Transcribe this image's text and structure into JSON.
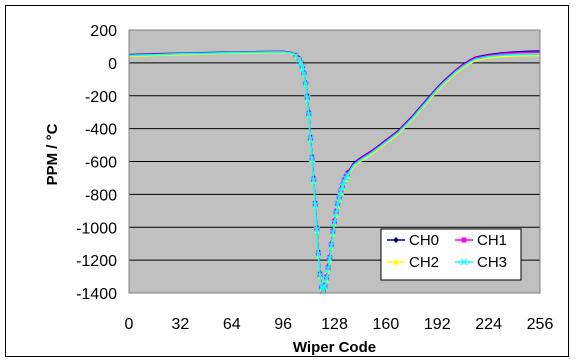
{
  "chart_data": {
    "type": "line",
    "title": "",
    "xlabel": "Wiper Code",
    "ylabel": "PPM / °C",
    "xlim": [
      0,
      256
    ],
    "ylim": [
      -1400,
      200
    ],
    "xticks": [
      0,
      32,
      64,
      96,
      128,
      160,
      192,
      224,
      256
    ],
    "yticks": [
      200,
      0,
      -200,
      -400,
      -600,
      -800,
      -1000,
      -1200,
      -1400
    ],
    "grid": "horizontal",
    "plot_background": "#c0c0c0",
    "legend_placement": "bottom-right",
    "series": [
      {
        "name": "CH0",
        "color": "#000080",
        "marker": "diamond",
        "x": [
          0,
          16,
          32,
          48,
          64,
          80,
          96,
          100,
          102,
          104,
          106,
          107,
          108,
          109,
          110,
          111,
          112,
          113,
          114,
          115,
          116,
          117,
          118,
          119,
          120,
          121,
          122,
          123,
          124,
          125,
          126,
          127,
          128,
          129,
          130,
          131,
          132,
          133,
          134,
          135,
          136,
          138,
          140,
          144,
          148,
          152,
          156,
          160,
          164,
          168,
          172,
          176,
          180,
          184,
          188,
          192,
          196,
          200,
          204,
          208,
          212,
          216,
          224,
          232,
          240,
          248,
          256
        ],
        "y": [
          50,
          55,
          58,
          62,
          65,
          68,
          70,
          65,
          60,
          45,
          25,
          5,
          -20,
          -60,
          -120,
          -200,
          -300,
          -450,
          -570,
          -700,
          -850,
          -1000,
          -1150,
          -1280,
          -1360,
          -1380,
          -1350,
          -1300,
          -1240,
          -1180,
          -1100,
          -1020,
          -960,
          -900,
          -850,
          -810,
          -770,
          -740,
          -710,
          -690,
          -670,
          -640,
          -610,
          -580,
          -555,
          -530,
          -500,
          -470,
          -440,
          -410,
          -370,
          -330,
          -285,
          -240,
          -195,
          -150,
          -110,
          -75,
          -40,
          -10,
          15,
          35,
          50,
          60,
          66,
          70,
          72
        ]
      },
      {
        "name": "CH1",
        "color": "#ff00ff",
        "marker": "square",
        "x": [
          0,
          16,
          32,
          48,
          64,
          80,
          96,
          100,
          102,
          104,
          106,
          107,
          108,
          109,
          110,
          111,
          112,
          113,
          114,
          115,
          116,
          117,
          118,
          119,
          120,
          121,
          122,
          123,
          124,
          125,
          126,
          127,
          128,
          129,
          130,
          131,
          132,
          133,
          134,
          135,
          136,
          138,
          140,
          144,
          148,
          152,
          156,
          160,
          164,
          168,
          172,
          176,
          180,
          184,
          188,
          192,
          196,
          200,
          204,
          208,
          212,
          216,
          224,
          232,
          240,
          248,
          256
        ],
        "y": [
          48,
          52,
          56,
          60,
          63,
          66,
          68,
          64,
          58,
          42,
          22,
          0,
          -25,
          -65,
          -125,
          -210,
          -310,
          -460,
          -580,
          -710,
          -860,
          -1010,
          -1160,
          -1290,
          -1365,
          -1385,
          -1355,
          -1305,
          -1245,
          -1185,
          -1105,
          -1025,
          -965,
          -905,
          -855,
          -815,
          -775,
          -745,
          -715,
          -695,
          -675,
          -645,
          -615,
          -585,
          -560,
          -535,
          -505,
          -475,
          -445,
          -415,
          -375,
          -335,
          -290,
          -245,
          -200,
          -155,
          -115,
          -80,
          -45,
          -15,
          10,
          30,
          45,
          55,
          60,
          63,
          65
        ]
      },
      {
        "name": "CH2",
        "color": "#ffff00",
        "marker": "triangle",
        "x": [
          0,
          16,
          32,
          48,
          64,
          80,
          96,
          100,
          102,
          104,
          106,
          107,
          108,
          109,
          110,
          111,
          112,
          113,
          114,
          115,
          116,
          117,
          118,
          119,
          120,
          121,
          122,
          123,
          124,
          125,
          126,
          127,
          128,
          129,
          130,
          131,
          132,
          133,
          134,
          135,
          136,
          138,
          140,
          144,
          148,
          152,
          156,
          160,
          164,
          168,
          172,
          176,
          180,
          184,
          188,
          192,
          196,
          200,
          204,
          208,
          212,
          216,
          224,
          232,
          240,
          248,
          256
        ],
        "y": [
          40,
          45,
          50,
          55,
          58,
          62,
          64,
          60,
          55,
          40,
          20,
          0,
          -30,
          -70,
          -130,
          -220,
          -320,
          -470,
          -590,
          -720,
          -870,
          -1020,
          -1170,
          -1300,
          -1370,
          -1390,
          -1365,
          -1320,
          -1260,
          -1200,
          -1120,
          -1040,
          -980,
          -920,
          -870,
          -830,
          -790,
          -760,
          -730,
          -710,
          -690,
          -660,
          -630,
          -600,
          -575,
          -550,
          -520,
          -490,
          -460,
          -430,
          -390,
          -350,
          -305,
          -260,
          -215,
          -170,
          -130,
          -95,
          -60,
          -30,
          -5,
          15,
          30,
          38,
          42,
          44,
          45
        ]
      },
      {
        "name": "CH3",
        "color": "#00ffff",
        "marker": "x",
        "x": [
          0,
          16,
          32,
          48,
          64,
          80,
          96,
          100,
          102,
          104,
          106,
          107,
          108,
          109,
          110,
          111,
          112,
          113,
          114,
          115,
          116,
          117,
          118,
          119,
          120,
          121,
          122,
          123,
          124,
          125,
          126,
          127,
          128,
          129,
          130,
          131,
          132,
          133,
          134,
          135,
          136,
          138,
          140,
          144,
          148,
          152,
          156,
          160,
          164,
          168,
          172,
          176,
          180,
          184,
          188,
          192,
          196,
          200,
          204,
          208,
          212,
          216,
          224,
          232,
          240,
          248,
          256
        ],
        "y": [
          45,
          50,
          55,
          58,
          62,
          65,
          66,
          62,
          57,
          42,
          20,
          0,
          -28,
          -68,
          -128,
          -215,
          -315,
          -465,
          -585,
          -715,
          -865,
          -1015,
          -1165,
          -1295,
          -1368,
          -1388,
          -1360,
          -1312,
          -1252,
          -1192,
          -1112,
          -1032,
          -972,
          -912,
          -862,
          -822,
          -782,
          -752,
          -722,
          -702,
          -682,
          -652,
          -622,
          -592,
          -567,
          -542,
          -512,
          -482,
          -452,
          -422,
          -382,
          -342,
          -297,
          -252,
          -207,
          -162,
          -122,
          -87,
          -52,
          -22,
          3,
          23,
          38,
          46,
          50,
          52,
          53
        ]
      }
    ]
  }
}
